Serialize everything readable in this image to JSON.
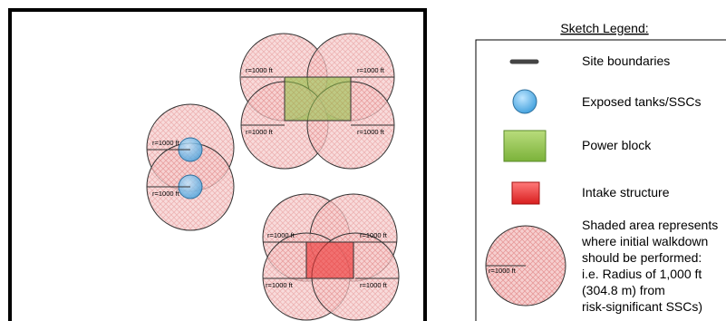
{
  "legend": {
    "title": "Sketch Legend:",
    "items": [
      {
        "key": "site_boundaries",
        "label": "Site boundaries"
      },
      {
        "key": "exposed_tanks",
        "label": "Exposed tanks/SSCs"
      },
      {
        "key": "power_block",
        "label": "Power block"
      },
      {
        "key": "intake_structure",
        "label": "Intake structure"
      }
    ],
    "shaded_area_lines": [
      "Shaded area represents",
      "where initial walkdown",
      "should be performed:",
      "i.e. Radius of 1,000 ft",
      "(304.8 m) from",
      "risk-significant SSCs)"
    ],
    "sample_radius_label": "r=1000 ft"
  },
  "radius_label": "r=1000 ft",
  "colors": {
    "circle_fill": "#f6cfcf",
    "circle_hatch": "#e79a9a",
    "power_block": "#93c54b",
    "intake": "#ee3333",
    "tank": "#5aaee6",
    "boundary": "#000000"
  },
  "icons": {
    "site_boundaries": "thick-line-icon",
    "exposed_tanks": "blue-circle-icon",
    "power_block": "green-square-icon",
    "intake_structure": "red-square-icon",
    "shaded_area": "hatched-circle-icon"
  }
}
